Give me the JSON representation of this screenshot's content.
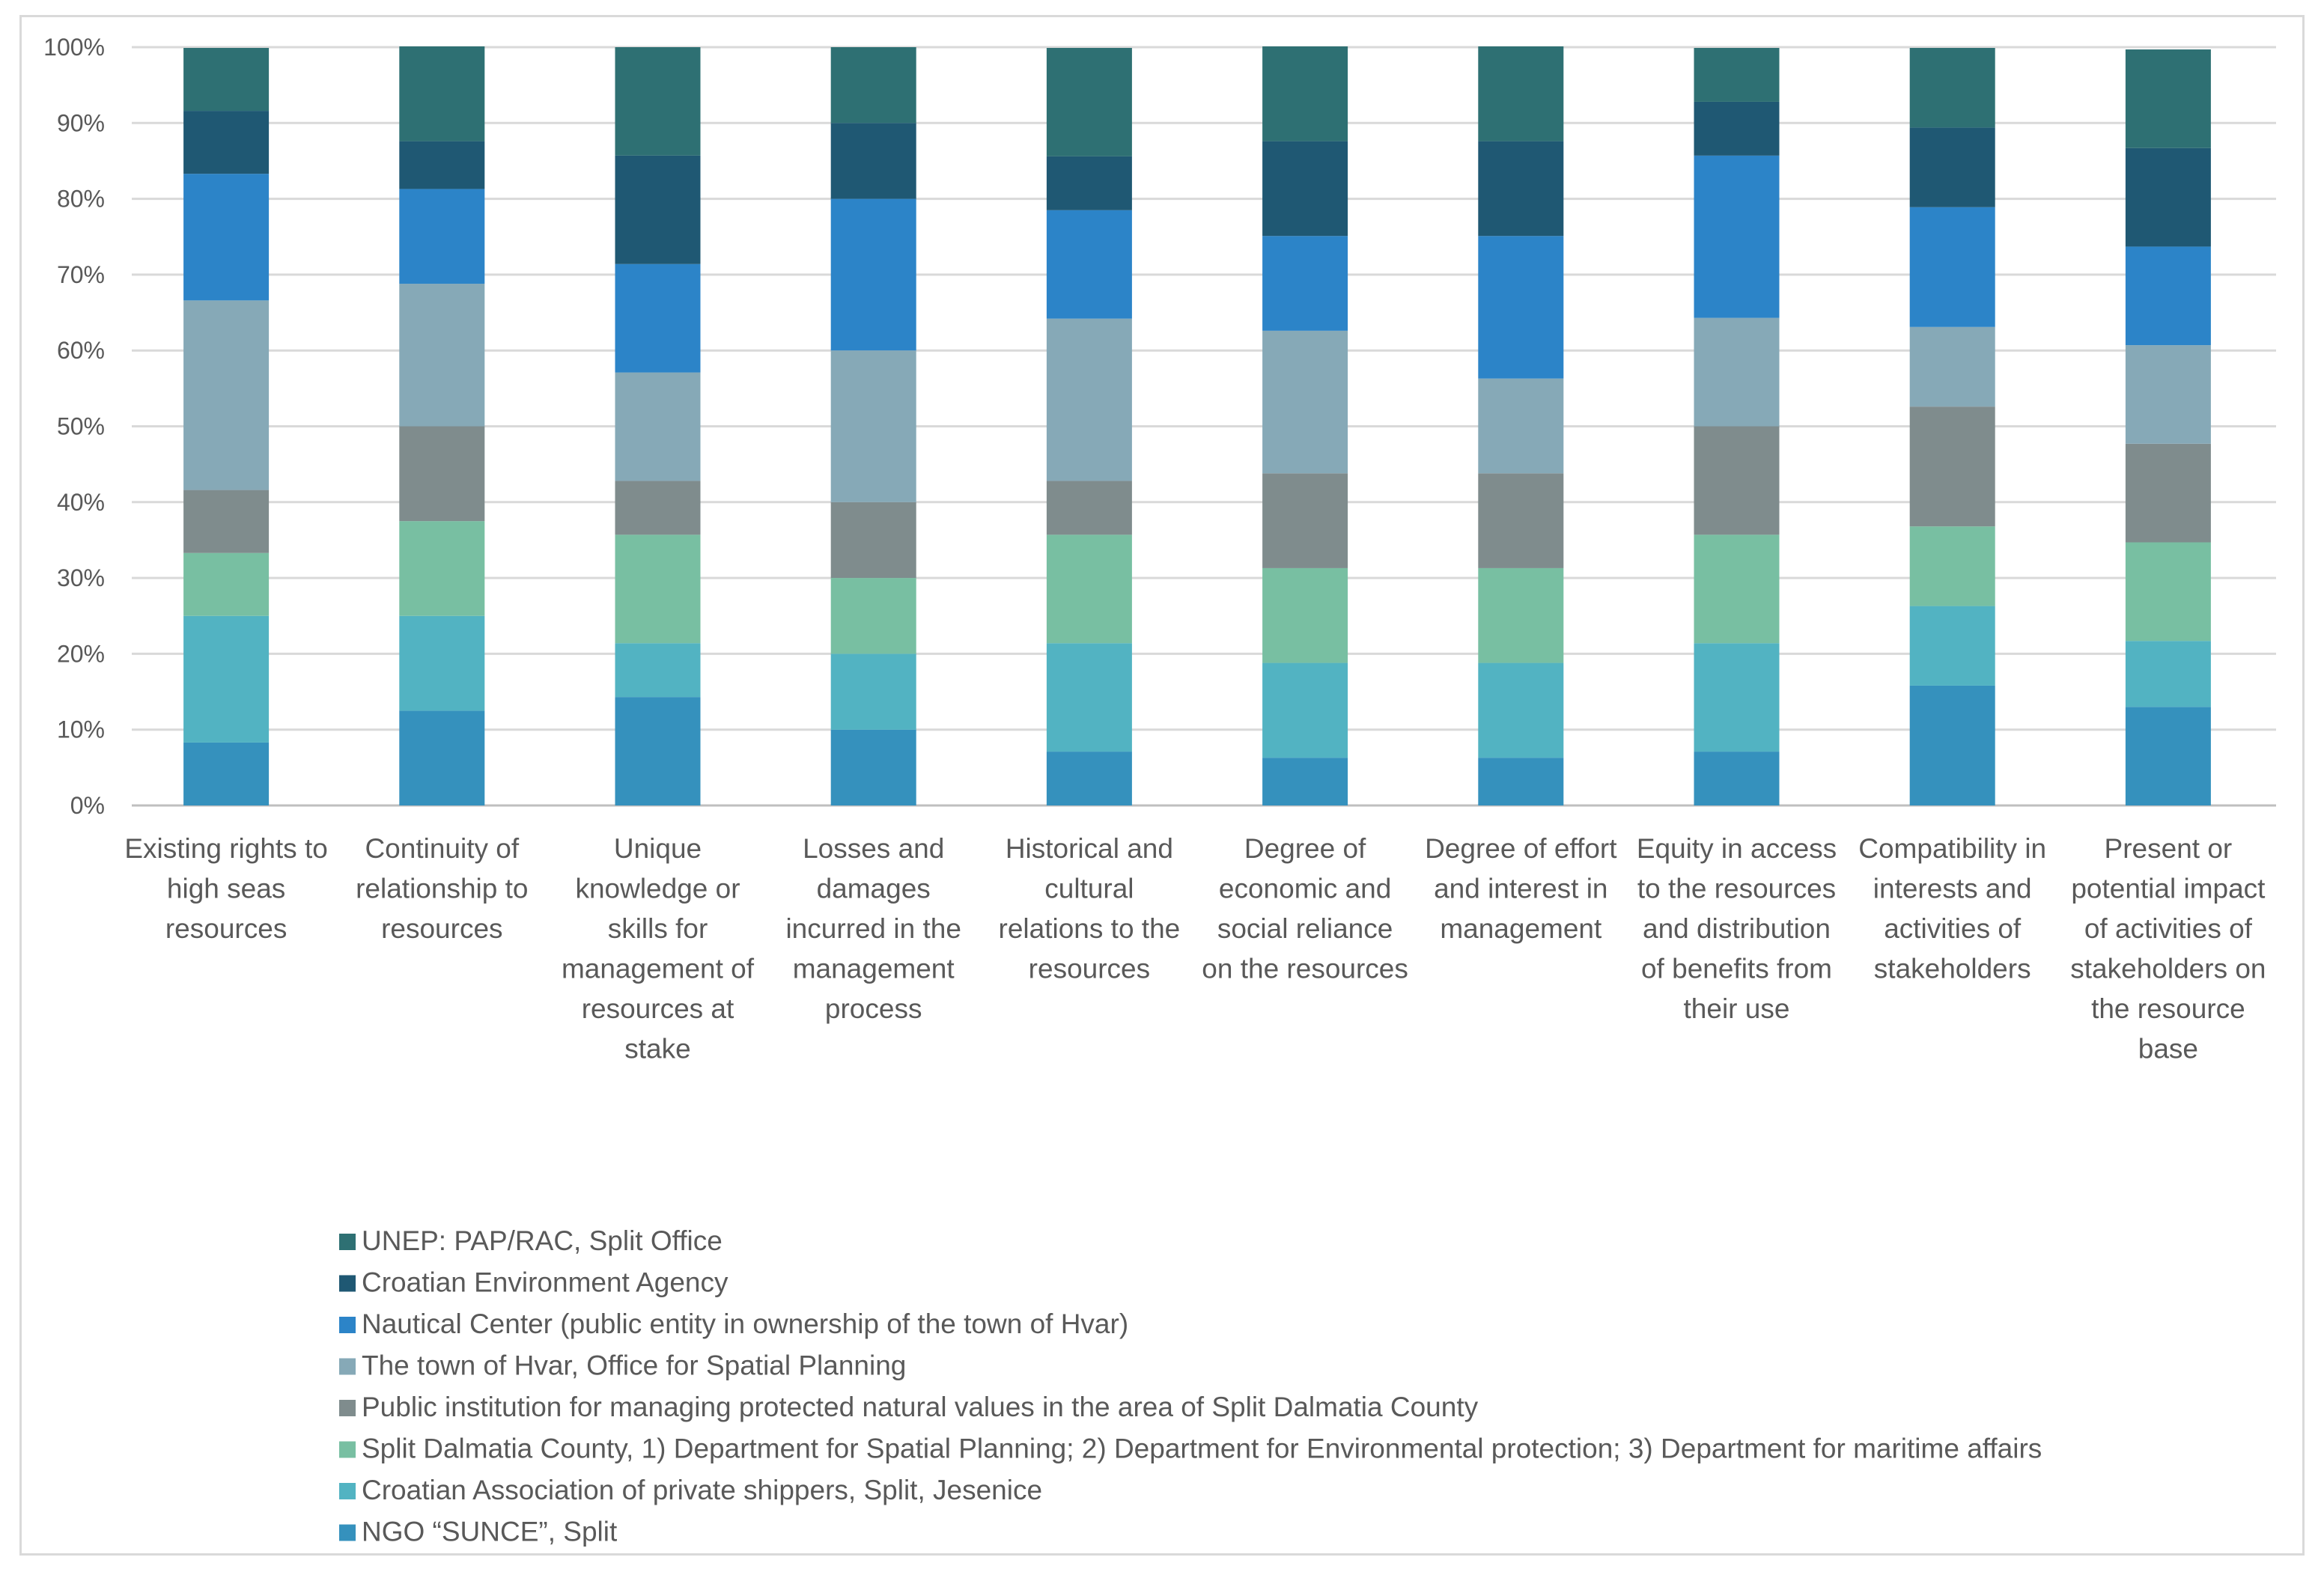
{
  "chart_data": {
    "type": "bar",
    "stacked": true,
    "percent": true,
    "title": "",
    "xlabel": "",
    "ylabel": "",
    "ylim": [
      0,
      100
    ],
    "yticks": [
      "0%",
      "10%",
      "20%",
      "30%",
      "40%",
      "50%",
      "60%",
      "70%",
      "80%",
      "90%",
      "100%"
    ],
    "grid": true,
    "legend_position": "bottom",
    "categories": [
      [
        "Existing rights to",
        "high seas",
        "resources"
      ],
      [
        "Continuity of",
        "relationship to",
        "resources"
      ],
      [
        "Unique",
        "knowledge or",
        "skills for",
        "management of",
        "resources at",
        "stake"
      ],
      [
        "Losses and",
        "damages",
        "incurred in the",
        "management",
        "process"
      ],
      [
        "Historical and",
        "cultural",
        "relations to the",
        "resources"
      ],
      [
        "Degree of",
        "economic and",
        "social reliance",
        "on the resources"
      ],
      [
        "Degree of effort",
        "and interest in",
        "management"
      ],
      [
        "Equity in access",
        "to the resources",
        "and distribution",
        "of benefits from",
        "their use"
      ],
      [
        "Compatibility in",
        "interests and",
        "activities of",
        "stakeholders"
      ],
      [
        "Present or",
        "potential impact",
        "of activities of",
        "stakeholders on",
        "the resource",
        "base"
      ]
    ],
    "series": [
      {
        "name": "NGO “SUNCE”, Split",
        "color": "#3591bd",
        "values": [
          8.3,
          12.5,
          14.3,
          10.0,
          7.1,
          6.3,
          6.3,
          7.1,
          15.8,
          13.0
        ]
      },
      {
        "name": "Croatian Association of private shippers, Split, Jesenice",
        "color": "#52b3c2",
        "values": [
          16.7,
          12.5,
          7.1,
          10.0,
          14.3,
          12.5,
          12.5,
          14.3,
          10.5,
          8.7
        ]
      },
      {
        "name": "Split Dalmatia County, 1) Department for Spatial Planning; 2) Department for Environmental protection; 3) Department for maritime affairs",
        "color": "#78bfa2",
        "values": [
          8.3,
          12.5,
          14.3,
          10.0,
          14.3,
          12.5,
          12.5,
          14.3,
          10.5,
          13.0
        ]
      },
      {
        "name": "Public institution for managing protected natural values in the area of Split Dalmatia County",
        "color": "#7f8c8d",
        "values": [
          8.3,
          12.5,
          7.1,
          10.0,
          7.1,
          12.5,
          12.5,
          14.3,
          15.8,
          13.0
        ]
      },
      {
        "name": "The town of Hvar, Office for Spatial Planning",
        "color": "#86a9b7",
        "values": [
          25.0,
          18.8,
          14.3,
          20.0,
          21.4,
          18.8,
          12.5,
          14.3,
          10.5,
          13.0
        ]
      },
      {
        "name": "Nautical Center (public entity in ownership of the town of Hvar)",
        "color": "#2c84c8",
        "values": [
          16.7,
          12.5,
          14.3,
          20.0,
          14.3,
          12.5,
          18.8,
          21.4,
          15.8,
          13.0
        ]
      },
      {
        "name": "Croatian Environment Agency",
        "color": "#1f5873",
        "values": [
          8.3,
          6.3,
          14.3,
          10.0,
          7.1,
          12.5,
          12.5,
          7.1,
          10.5,
          13.0
        ]
      },
      {
        "name": "UNEP: PAP/RAC, Split Office",
        "color": "#2e7073",
        "values": [
          8.3,
          12.5,
          14.3,
          10.0,
          14.3,
          12.5,
          12.5,
          7.1,
          10.5,
          13.0
        ]
      }
    ]
  }
}
